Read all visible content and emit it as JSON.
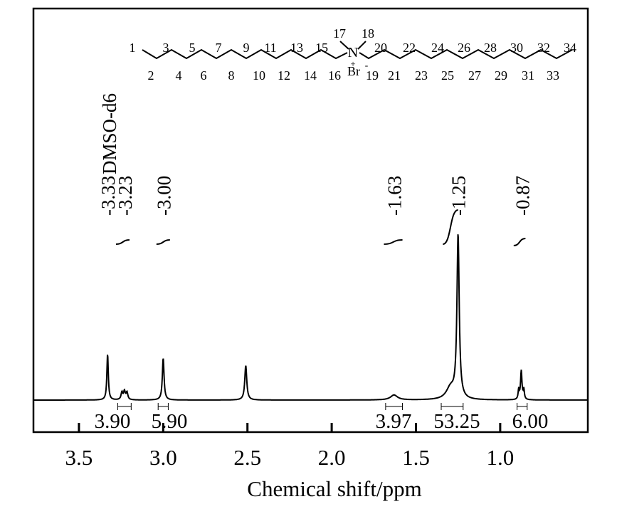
{
  "chart_data": {
    "type": "line",
    "xlabel": "Chemical shift/ppm",
    "x_reversed": true,
    "xlim": [
      3.77,
      0.48
    ],
    "xticks": [
      "3.5",
      "3.0",
      "2.5",
      "2.0",
      "1.5",
      "1.0"
    ],
    "xtick_values": [
      3.5,
      3.0,
      2.5,
      2.0,
      1.5,
      1.0
    ],
    "solvent_label": "DMSO-d6",
    "peak_labels": [
      {
        "text": "-3.33",
        "ppm": 3.33
      },
      {
        "text": "-3.23",
        "ppm": 3.23
      },
      {
        "text": "-3.00",
        "ppm": 3.0
      },
      {
        "text": "-1.63",
        "ppm": 1.63
      },
      {
        "text": "-1.25",
        "ppm": 1.25
      },
      {
        "text": "-0.87",
        "ppm": 0.87
      }
    ],
    "integrals": [
      {
        "value": "3.90",
        "from": 3.27,
        "to": 3.19
      },
      {
        "value": "5.90",
        "from": 3.03,
        "to": 2.97
      },
      {
        "value": "3.97",
        "from": 1.68,
        "to": 1.58
      },
      {
        "value": "53.25",
        "from": 1.35,
        "to": 1.22
      },
      {
        "value": "6.00",
        "from": 0.9,
        "to": 0.84
      }
    ],
    "peaks": [
      {
        "ppm": 3.33,
        "height": 0.28,
        "width": 0.005
      },
      {
        "ppm": 3.245,
        "height": 0.045,
        "width": 0.006
      },
      {
        "ppm": 3.23,
        "height": 0.05,
        "width": 0.006
      },
      {
        "ppm": 3.215,
        "height": 0.045,
        "width": 0.006
      },
      {
        "ppm": 3.0,
        "height": 0.255,
        "width": 0.006
      },
      {
        "ppm": 2.51,
        "height": 0.21,
        "width": 0.007
      },
      {
        "ppm": 1.63,
        "height": 0.03,
        "width": 0.025
      },
      {
        "ppm": 1.295,
        "height": 0.07,
        "width": 0.03
      },
      {
        "ppm": 1.25,
        "height": 0.99,
        "width": 0.008
      },
      {
        "ppm": 0.875,
        "height": 0.175,
        "width": 0.005
      },
      {
        "ppm": 0.89,
        "height": 0.06,
        "width": 0.004
      },
      {
        "ppm": 0.86,
        "height": 0.06,
        "width": 0.004
      }
    ],
    "structure": {
      "top_numbers": [
        "1",
        "3",
        "5",
        "7",
        "9",
        "11",
        "13",
        "15",
        "17",
        "18",
        "20",
        "22",
        "24",
        "26",
        "28",
        "30",
        "32",
        "34"
      ],
      "bottom_numbers": [
        "2",
        "4",
        "6",
        "8",
        "10",
        "12",
        "14",
        "16",
        "19",
        "21",
        "23",
        "25",
        "27",
        "29",
        "31",
        "33"
      ],
      "nitrogen": "N",
      "plus_sign": "+",
      "counterion": "Br",
      "minus_sign": "-"
    }
  }
}
